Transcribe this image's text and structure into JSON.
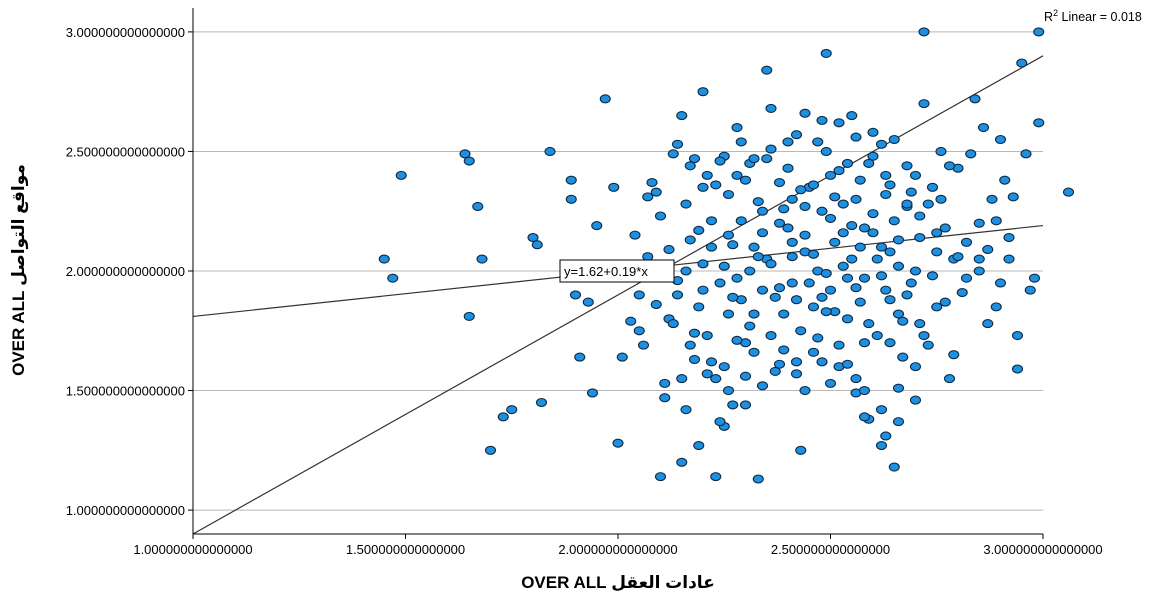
{
  "colors": {
    "point_fill": "#1f8fe0",
    "point_stroke": "#0b2a44",
    "grid": "#b8b8b8",
    "line": "#333333"
  },
  "chart_data": {
    "type": "scatter",
    "xlabel": "عادات العقل OVER ALL",
    "ylabel": "مواقع التواصل OVER ALL",
    "xlim": [
      1.0,
      3.0
    ],
    "ylim": [
      0.9,
      3.1
    ],
    "x_ticks": [
      1.0,
      1.5,
      2.0,
      2.5,
      3.0
    ],
    "y_ticks": [
      1.0,
      1.5,
      2.0,
      2.5,
      3.0
    ],
    "x_tick_labels": [
      "1.000000000000000",
      "1.500000000000000",
      "2.000000000000000",
      "2.500000000000000",
      "3.000000000000000"
    ],
    "y_tick_labels": [
      "1.000000000000000",
      "1.500000000000000",
      "2.000000000000000",
      "2.500000000000000",
      "3.000000000000000"
    ],
    "grid": "horizontal",
    "fit_line": {
      "label": "y=1.62+0.19*x",
      "intercept": 1.62,
      "slope": 0.19
    },
    "reference_line": {
      "intercept": -0.1,
      "slope": 1.0
    },
    "r2_label": {
      "prefix": "R",
      "sup": "2",
      "text": " Linear = 0.018"
    },
    "points": [
      [
        1.45,
        2.05
      ],
      [
        1.47,
        1.97
      ],
      [
        1.49,
        2.4
      ],
      [
        1.64,
        2.49
      ],
      [
        1.65,
        2.46
      ],
      [
        1.65,
        1.81
      ],
      [
        1.67,
        2.27
      ],
      [
        1.68,
        2.05
      ],
      [
        1.7,
        1.25
      ],
      [
        1.73,
        1.39
      ],
      [
        1.75,
        1.42
      ],
      [
        1.8,
        2.14
      ],
      [
        1.81,
        2.11
      ],
      [
        1.82,
        1.45
      ],
      [
        1.84,
        2.5
      ],
      [
        1.89,
        2.38
      ],
      [
        1.89,
        2.3
      ],
      [
        1.9,
        1.9
      ],
      [
        1.91,
        1.64
      ],
      [
        1.92,
        2.01
      ],
      [
        1.93,
        1.87
      ],
      [
        1.94,
        1.49
      ],
      [
        1.95,
        2.19
      ],
      [
        1.97,
        2.72
      ],
      [
        1.99,
        2.35
      ],
      [
        2.0,
        1.28
      ],
      [
        2.01,
        1.64
      ],
      [
        2.03,
        1.79
      ],
      [
        2.04,
        2.15
      ],
      [
        2.05,
        1.75
      ],
      [
        2.06,
        1.69
      ],
      [
        2.07,
        2.31
      ],
      [
        2.08,
        2.37
      ],
      [
        2.09,
        2.33
      ],
      [
        2.1,
        2.23
      ],
      [
        2.11,
        1.53
      ],
      [
        2.11,
        1.47
      ],
      [
        2.12,
        1.8
      ],
      [
        2.13,
        2.49
      ],
      [
        2.14,
        2.53
      ],
      [
        2.14,
        1.9
      ],
      [
        2.15,
        2.65
      ],
      [
        2.16,
        2.0
      ],
      [
        2.17,
        2.13
      ],
      [
        2.18,
        1.74
      ],
      [
        2.19,
        1.85
      ],
      [
        2.2,
        2.35
      ],
      [
        2.21,
        2.4
      ],
      [
        2.22,
        1.62
      ],
      [
        2.22,
        2.21
      ],
      [
        2.23,
        1.55
      ],
      [
        2.24,
        1.95
      ],
      [
        2.25,
        2.48
      ],
      [
        2.25,
        1.35
      ],
      [
        2.26,
        1.82
      ],
      [
        2.27,
        2.11
      ],
      [
        2.28,
        2.6
      ],
      [
        2.29,
        1.88
      ],
      [
        2.3,
        1.7
      ],
      [
        2.31,
        2.45
      ],
      [
        2.32,
        2.1
      ],
      [
        2.33,
        1.13
      ],
      [
        2.33,
        2.29
      ],
      [
        2.34,
        1.92
      ],
      [
        2.35,
        2.05
      ],
      [
        2.36,
        2.68
      ],
      [
        2.37,
        1.58
      ],
      [
        2.38,
        2.2
      ],
      [
        2.39,
        1.67
      ],
      [
        2.4,
        2.43
      ],
      [
        2.41,
        1.95
      ],
      [
        2.41,
        2.3
      ],
      [
        2.42,
        2.57
      ],
      [
        2.43,
        1.75
      ],
      [
        2.44,
        2.15
      ],
      [
        2.44,
        1.5
      ],
      [
        2.45,
        2.35
      ],
      [
        2.46,
        1.85
      ],
      [
        2.47,
        2.0
      ],
      [
        2.48,
        2.25
      ],
      [
        2.48,
        1.62
      ],
      [
        2.49,
        2.5
      ],
      [
        2.5,
        1.92
      ],
      [
        2.51,
        2.12
      ],
      [
        2.52,
        2.42
      ],
      [
        2.52,
        1.69
      ],
      [
        2.53,
        2.28
      ],
      [
        2.54,
        1.8
      ],
      [
        2.55,
        2.65
      ],
      [
        2.55,
        2.05
      ],
      [
        2.56,
        1.55
      ],
      [
        2.57,
        2.38
      ],
      [
        2.58,
        1.97
      ],
      [
        2.58,
        2.18
      ],
      [
        2.59,
        1.38
      ],
      [
        2.6,
        2.48
      ],
      [
        2.61,
        1.73
      ],
      [
        2.62,
        2.1
      ],
      [
        2.63,
        2.32
      ],
      [
        2.64,
        1.88
      ],
      [
        2.65,
        1.18
      ],
      [
        2.65,
        2.55
      ],
      [
        2.66,
        2.02
      ],
      [
        2.67,
        1.64
      ],
      [
        2.68,
        2.27
      ],
      [
        2.69,
        1.95
      ],
      [
        2.7,
        2.4
      ],
      [
        2.71,
        1.78
      ],
      [
        2.71,
        2.14
      ],
      [
        2.72,
        2.7
      ],
      [
        2.73,
        1.69
      ],
      [
        2.74,
        2.35
      ],
      [
        2.75,
        2.08
      ],
      [
        2.75,
        1.85
      ],
      [
        2.76,
        2.5
      ],
      [
        2.77,
        2.18
      ],
      [
        2.78,
        1.55
      ],
      [
        2.79,
        2.05
      ],
      [
        2.8,
        2.43
      ],
      [
        2.81,
        1.91
      ],
      [
        2.82,
        2.12
      ],
      [
        2.84,
        2.72
      ],
      [
        2.85,
        2.0
      ],
      [
        2.86,
        2.6
      ],
      [
        2.87,
        1.78
      ],
      [
        2.88,
        2.3
      ],
      [
        2.89,
        2.21
      ],
      [
        2.9,
        1.95
      ],
      [
        2.91,
        2.38
      ],
      [
        2.92,
        2.05
      ],
      [
        2.93,
        2.31
      ],
      [
        2.94,
        1.73
      ],
      [
        2.94,
        1.59
      ],
      [
        2.95,
        2.87
      ],
      [
        2.96,
        2.49
      ],
      [
        2.97,
        1.92
      ],
      [
        2.98,
        1.97
      ],
      [
        2.99,
        2.62
      ],
      [
        2.99,
        3.0
      ],
      [
        3.06,
        2.33
      ],
      [
        2.72,
        3.0
      ],
      [
        2.49,
        2.91
      ],
      [
        2.35,
        2.84
      ],
      [
        2.2,
        2.75
      ],
      [
        2.43,
        1.25
      ],
      [
        2.19,
        1.27
      ],
      [
        2.15,
        1.2
      ],
      [
        2.23,
        1.14
      ],
      [
        2.1,
        1.14
      ],
      [
        2.63,
        1.31
      ],
      [
        2.62,
        1.27
      ],
      [
        2.66,
        1.37
      ],
      [
        2.58,
        1.39
      ],
      [
        2.56,
        1.49
      ],
      [
        2.3,
        1.56
      ],
      [
        2.27,
        1.44
      ],
      [
        2.24,
        1.37
      ],
      [
        2.21,
        1.57
      ],
      [
        2.18,
        1.63
      ],
      [
        2.16,
        1.42
      ],
      [
        2.14,
        1.96
      ],
      [
        2.12,
        2.09
      ],
      [
        2.11,
        2.02
      ],
      [
        2.09,
        1.86
      ],
      [
        2.08,
        1.98
      ],
      [
        2.16,
        2.28
      ],
      [
        2.18,
        2.47
      ],
      [
        2.22,
        2.1
      ],
      [
        2.26,
        2.15
      ],
      [
        2.28,
        1.97
      ],
      [
        2.3,
        2.38
      ],
      [
        2.32,
        1.82
      ],
      [
        2.34,
        2.25
      ],
      [
        2.36,
        2.03
      ],
      [
        2.38,
        1.93
      ],
      [
        2.4,
        2.18
      ],
      [
        2.42,
        1.88
      ],
      [
        2.44,
        2.08
      ],
      [
        2.46,
        2.36
      ],
      [
        2.47,
        1.72
      ],
      [
        2.49,
        1.99
      ],
      [
        2.5,
        2.22
      ],
      [
        2.51,
        1.83
      ],
      [
        2.53,
        2.16
      ],
      [
        2.54,
        2.45
      ],
      [
        2.56,
        1.93
      ],
      [
        2.57,
        2.1
      ],
      [
        2.59,
        1.78
      ],
      [
        2.6,
        2.24
      ],
      [
        2.62,
        1.98
      ],
      [
        2.63,
        2.4
      ],
      [
        2.64,
        1.7
      ],
      [
        2.66,
        2.13
      ],
      [
        2.68,
        1.9
      ],
      [
        2.69,
        2.33
      ],
      [
        2.7,
        2.0
      ],
      [
        2.72,
        1.73
      ],
      [
        2.73,
        2.28
      ],
      [
        2.75,
        2.16
      ],
      [
        2.77,
        1.87
      ],
      [
        2.78,
        2.44
      ],
      [
        2.8,
        2.06
      ],
      [
        2.82,
        1.97
      ],
      [
        2.83,
        2.49
      ],
      [
        2.85,
        2.2
      ],
      [
        2.87,
        2.09
      ],
      [
        2.89,
        1.85
      ],
      [
        2.9,
        2.55
      ],
      [
        2.92,
        2.14
      ],
      [
        2.25,
        2.02
      ],
      [
        2.27,
        1.89
      ],
      [
        2.29,
        2.21
      ],
      [
        2.31,
        1.77
      ],
      [
        2.33,
        2.06
      ],
      [
        2.35,
        2.47
      ],
      [
        2.37,
        1.89
      ],
      [
        2.39,
        2.26
      ],
      [
        2.41,
        2.06
      ],
      [
        2.43,
        2.34
      ],
      [
        2.45,
        1.95
      ],
      [
        2.47,
        2.54
      ],
      [
        2.49,
        1.83
      ],
      [
        2.51,
        2.31
      ],
      [
        2.53,
        2.02
      ],
      [
        2.55,
        2.19
      ],
      [
        2.57,
        1.87
      ],
      [
        2.59,
        2.45
      ],
      [
        2.61,
        2.05
      ],
      [
        2.63,
        1.92
      ],
      [
        2.65,
        2.21
      ],
      [
        2.67,
        1.79
      ],
      [
        2.2,
        1.92
      ],
      [
        2.21,
        1.73
      ],
      [
        2.23,
        2.36
      ],
      [
        2.25,
        1.6
      ],
      [
        2.26,
        2.32
      ],
      [
        2.28,
        1.71
      ],
      [
        2.29,
        2.54
      ],
      [
        2.31,
        2.0
      ],
      [
        2.32,
        1.66
      ],
      [
        2.34,
        2.16
      ],
      [
        2.36,
        1.73
      ],
      [
        2.38,
        2.37
      ],
      [
        2.39,
        1.82
      ],
      [
        2.41,
        2.12
      ],
      [
        2.42,
        1.62
      ],
      [
        2.44,
        2.27
      ],
      [
        2.46,
        2.07
      ],
      [
        2.48,
        1.89
      ],
      [
        2.5,
        2.4
      ],
      [
        2.52,
        1.6
      ],
      [
        2.54,
        1.97
      ],
      [
        2.56,
        2.3
      ],
      [
        2.58,
        1.7
      ],
      [
        2.6,
        2.16
      ],
      [
        2.62,
        2.53
      ],
      [
        2.64,
        2.08
      ],
      [
        2.66,
        1.82
      ],
      [
        2.68,
        2.44
      ],
      [
        2.7,
        1.6
      ],
      [
        2.71,
        2.23
      ],
      [
        2.74,
        1.98
      ],
      [
        2.76,
        2.3
      ],
      [
        2.79,
        1.65
      ],
      [
        2.05,
        1.9
      ],
      [
        2.07,
        2.06
      ],
      [
        2.13,
        1.78
      ],
      [
        2.15,
        1.55
      ],
      [
        2.17,
        1.69
      ],
      [
        2.19,
        2.17
      ],
      [
        2.17,
        2.44
      ],
      [
        2.2,
        2.03
      ],
      [
        2.24,
        2.46
      ],
      [
        2.26,
        1.5
      ],
      [
        2.28,
        2.4
      ],
      [
        2.3,
        1.44
      ],
      [
        2.32,
        2.47
      ],
      [
        2.34,
        1.52
      ],
      [
        2.36,
        2.51
      ],
      [
        2.38,
        1.61
      ],
      [
        2.4,
        2.54
      ],
      [
        2.42,
        1.57
      ],
      [
        2.44,
        2.66
      ],
      [
        2.46,
        1.66
      ],
      [
        2.48,
        2.63
      ],
      [
        2.5,
        1.53
      ],
      [
        2.52,
        2.62
      ],
      [
        2.54,
        1.61
      ],
      [
        2.56,
        2.56
      ],
      [
        2.58,
        1.5
      ],
      [
        2.6,
        2.58
      ],
      [
        2.62,
        1.42
      ],
      [
        2.64,
        2.36
      ],
      [
        2.66,
        1.51
      ],
      [
        2.68,
        2.28
      ],
      [
        2.7,
        1.46
      ],
      [
        2.85,
        2.05
      ]
    ]
  }
}
